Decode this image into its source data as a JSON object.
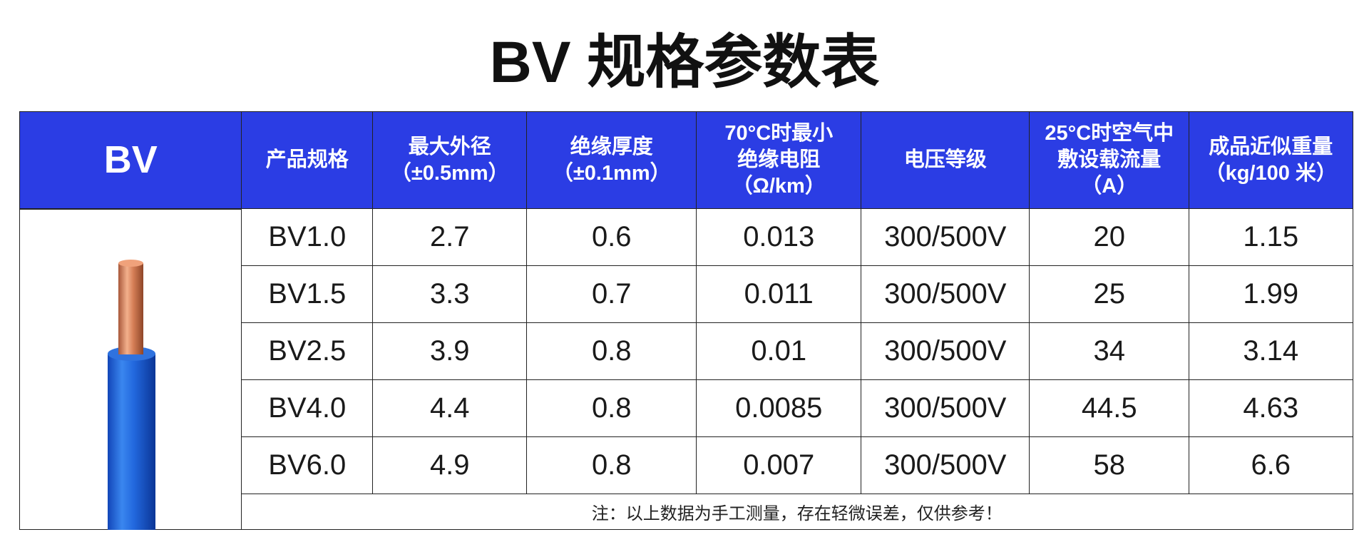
{
  "header": {
    "title": "BV 规格参数表"
  },
  "table": {
    "columns": [
      [
        "BV"
      ],
      [
        "产品规格"
      ],
      [
        "最大外径",
        "（±0.5mm）"
      ],
      [
        "绝缘厚度",
        "（±0.1mm）"
      ],
      [
        "70°C时最小",
        "绝缘电阻",
        "（Ω/km）"
      ],
      [
        "电压等级"
      ],
      [
        "25°C时空气中",
        "敷设载流量",
        "（A）"
      ],
      [
        "成品近似重量",
        "（kg/100 米）"
      ]
    ],
    "rows": [
      [
        "BV1.0",
        "2.7",
        "0.6",
        "0.013",
        "300/500V",
        "20",
        "1.15"
      ],
      [
        "BV1.5",
        "3.3",
        "0.7",
        "0.011",
        "300/500V",
        "25",
        "1.99"
      ],
      [
        "BV2.5",
        "3.9",
        "0.8",
        "0.01",
        "300/500V",
        "34",
        "3.14"
      ],
      [
        "BV4.0",
        "4.4",
        "0.8",
        "0.0085",
        "300/500V",
        "44.5",
        "4.63"
      ],
      [
        "BV6.0",
        "4.9",
        "0.8",
        "0.007",
        "300/500V",
        "58",
        "6.6"
      ]
    ],
    "note": "注：以上数据为手工测量，存在轻微误差，仅供参考！"
  }
}
